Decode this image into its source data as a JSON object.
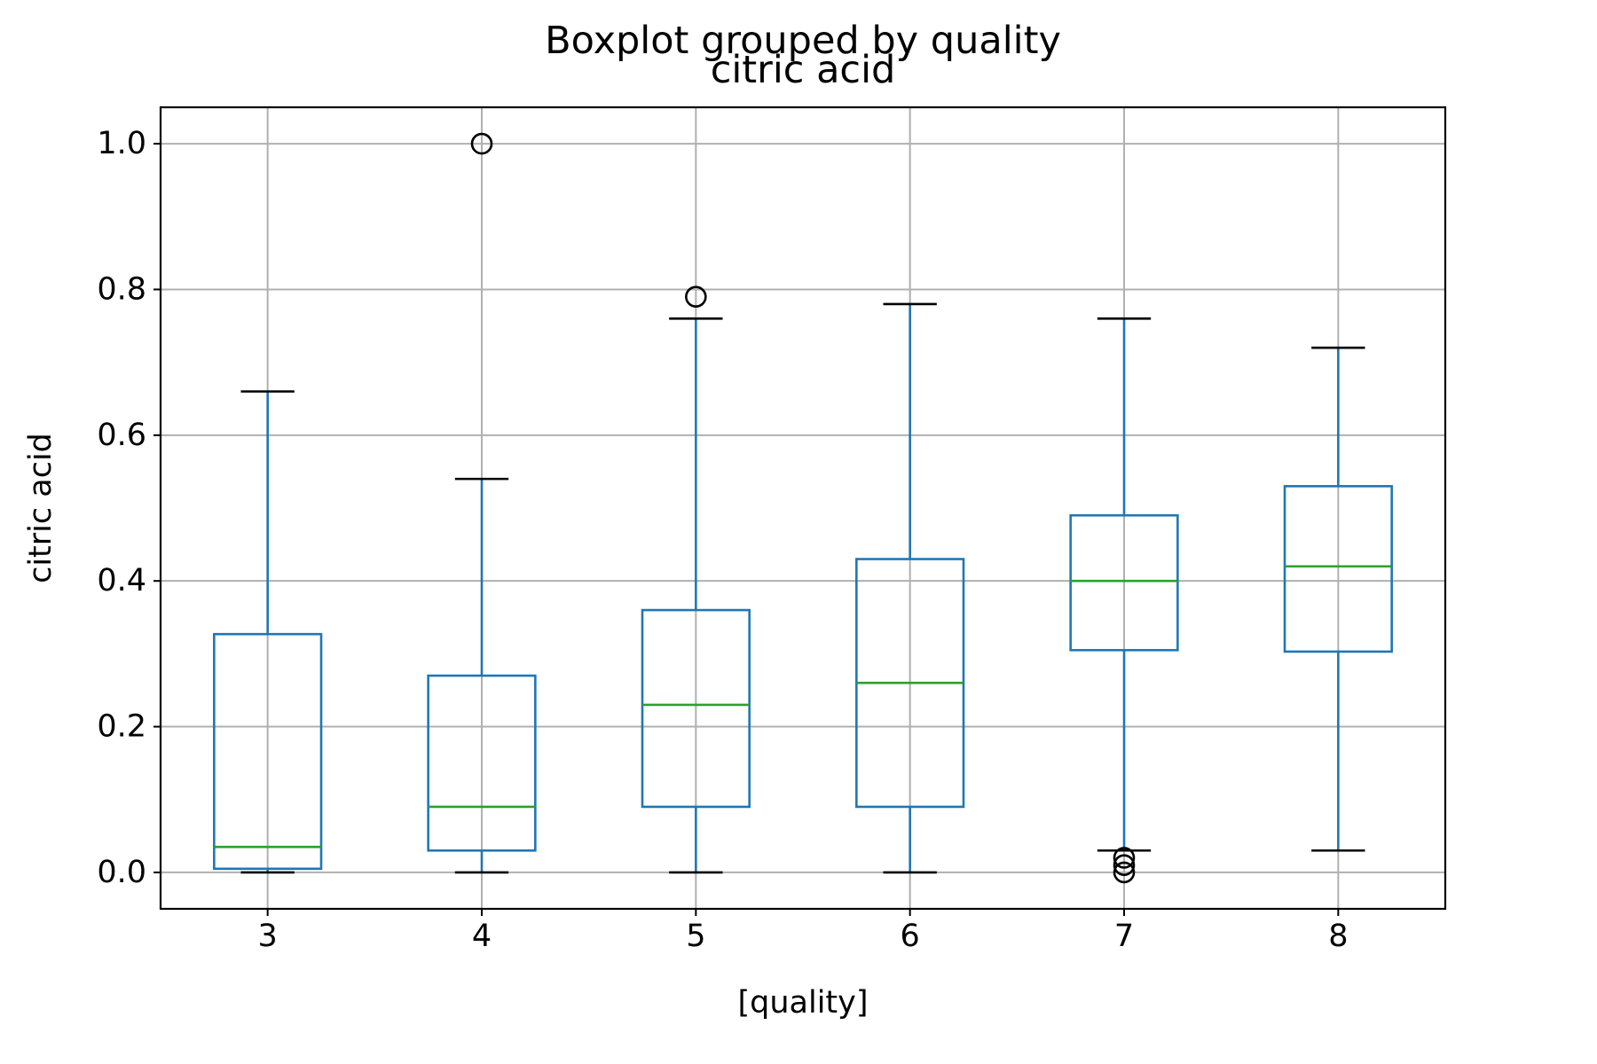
{
  "chart_data": {
    "type": "boxplot",
    "suptitle": "Boxplot grouped by quality",
    "title": "citric acid",
    "xlabel": "[quality]",
    "ylabel": "citric acid",
    "ylim": [
      -0.05,
      1.05
    ],
    "yticks": [
      0.0,
      0.2,
      0.4,
      0.6,
      0.8,
      1.0
    ],
    "ytick_labels": [
      "0.0",
      "0.2",
      "0.4",
      "0.6",
      "0.8",
      "1.0"
    ],
    "grid": true,
    "colors": {
      "box": "#1f77b4",
      "median": "#2ca02c",
      "cap": "#000000",
      "flier": "#000000",
      "grid": "#b0b0b0"
    },
    "categories": [
      "3",
      "4",
      "5",
      "6",
      "7",
      "8"
    ],
    "boxes": [
      {
        "category": "3",
        "whislo": 0.0,
        "q1": 0.005,
        "med": 0.035,
        "q3": 0.327,
        "whishi": 0.66,
        "fliers": []
      },
      {
        "category": "4",
        "whislo": 0.0,
        "q1": 0.03,
        "med": 0.09,
        "q3": 0.27,
        "whishi": 0.54,
        "fliers": [
          1.0
        ]
      },
      {
        "category": "5",
        "whislo": 0.0,
        "q1": 0.09,
        "med": 0.23,
        "q3": 0.36,
        "whishi": 0.76,
        "fliers": [
          0.79
        ]
      },
      {
        "category": "6",
        "whislo": 0.0,
        "q1": 0.09,
        "med": 0.26,
        "q3": 0.43,
        "whishi": 0.78,
        "fliers": []
      },
      {
        "category": "7",
        "whislo": 0.03,
        "q1": 0.305,
        "med": 0.4,
        "q3": 0.49,
        "whishi": 0.76,
        "fliers": [
          0.0,
          0.01,
          0.02
        ]
      },
      {
        "category": "8",
        "whislo": 0.03,
        "q1": 0.303,
        "med": 0.42,
        "q3": 0.53,
        "whishi": 0.72,
        "fliers": []
      }
    ]
  }
}
